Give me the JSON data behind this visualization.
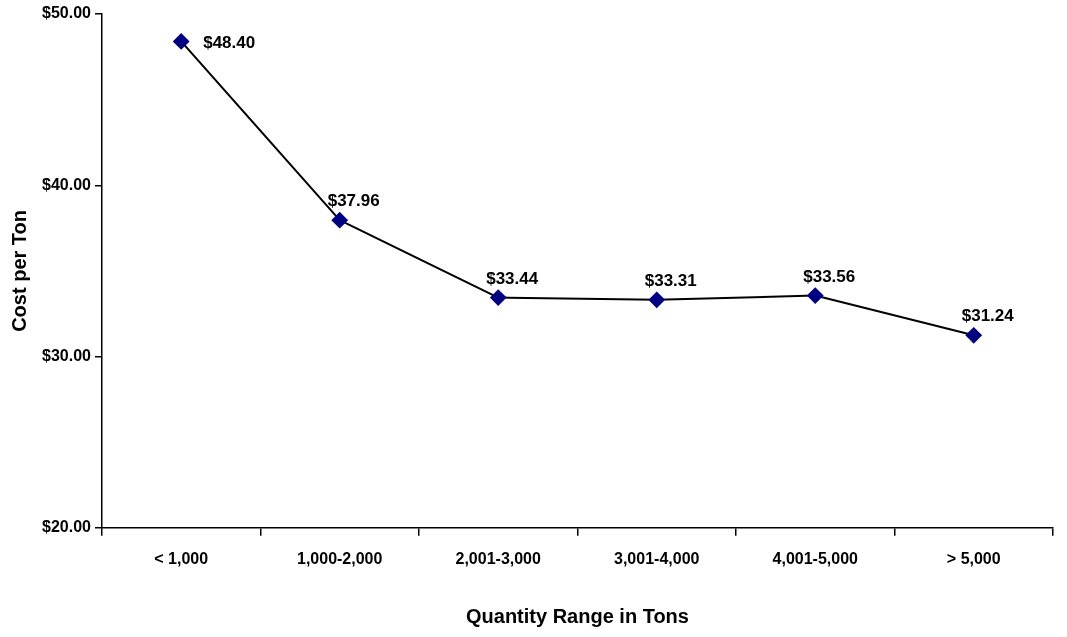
{
  "chart_data": {
    "type": "line",
    "xlabel": "Quantity Range in Tons",
    "ylabel": "Cost per Ton",
    "categories": [
      "< 1,000",
      "1,000-2,000",
      "2,001-3,000",
      "3,001-4,000",
      "4,001-5,000",
      "> 5,000"
    ],
    "series": [
      {
        "color": "#000080",
        "values": [
          48.4,
          37.96,
          33.44,
          33.31,
          33.56,
          31.24
        ],
        "value_labels": [
          "$48.40",
          "$37.96",
          "$33.44",
          "$33.31",
          "$33.56",
          "$31.24"
        ]
      }
    ],
    "ylim": [
      20,
      50
    ],
    "yticks": [
      {
        "value": 20,
        "label": "$20.00"
      },
      {
        "value": 30,
        "label": "$30.00"
      },
      {
        "value": 40,
        "label": "$40.00"
      },
      {
        "value": 50,
        "label": "$50.00"
      }
    ],
    "grid": false,
    "legend": false,
    "marker": "diamond",
    "line_style": "solid"
  }
}
